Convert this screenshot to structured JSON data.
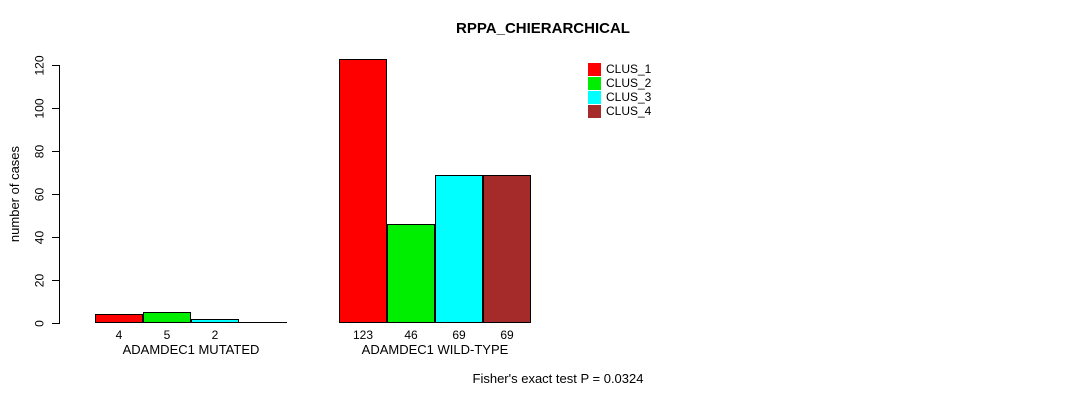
{
  "chart_data": {
    "type": "bar",
    "title": "RPPA_CHIERARCHICAL",
    "ylabel": "number of cases",
    "xlabel": "",
    "ylim": [
      0,
      123
    ],
    "yticks": [
      0,
      20,
      40,
      60,
      80,
      100,
      120
    ],
    "grid": false,
    "legend_position": "top-right-inside",
    "categories": [
      "ADAMDEC1 MUTATED",
      "ADAMDEC1 WILD-TYPE"
    ],
    "series": [
      {
        "name": "CLUS_1",
        "color": "#ff0000",
        "values": [
          4,
          123
        ]
      },
      {
        "name": "CLUS_2",
        "color": "#00ee00",
        "values": [
          5,
          46
        ]
      },
      {
        "name": "CLUS_3",
        "color": "#00ffff",
        "values": [
          2,
          69
        ]
      },
      {
        "name": "CLUS_4",
        "color": "#a52a2a",
        "values": [
          0,
          69
        ]
      }
    ],
    "bar_value_labels": [
      [
        "4",
        "5",
        "2",
        ""
      ],
      [
        "123",
        "46",
        "69",
        "69"
      ]
    ],
    "annotation": "Fisher's exact test P = 0.0324",
    "colors": {
      "background": "#ffffff",
      "axis": "#000000",
      "text": "#000000"
    }
  }
}
